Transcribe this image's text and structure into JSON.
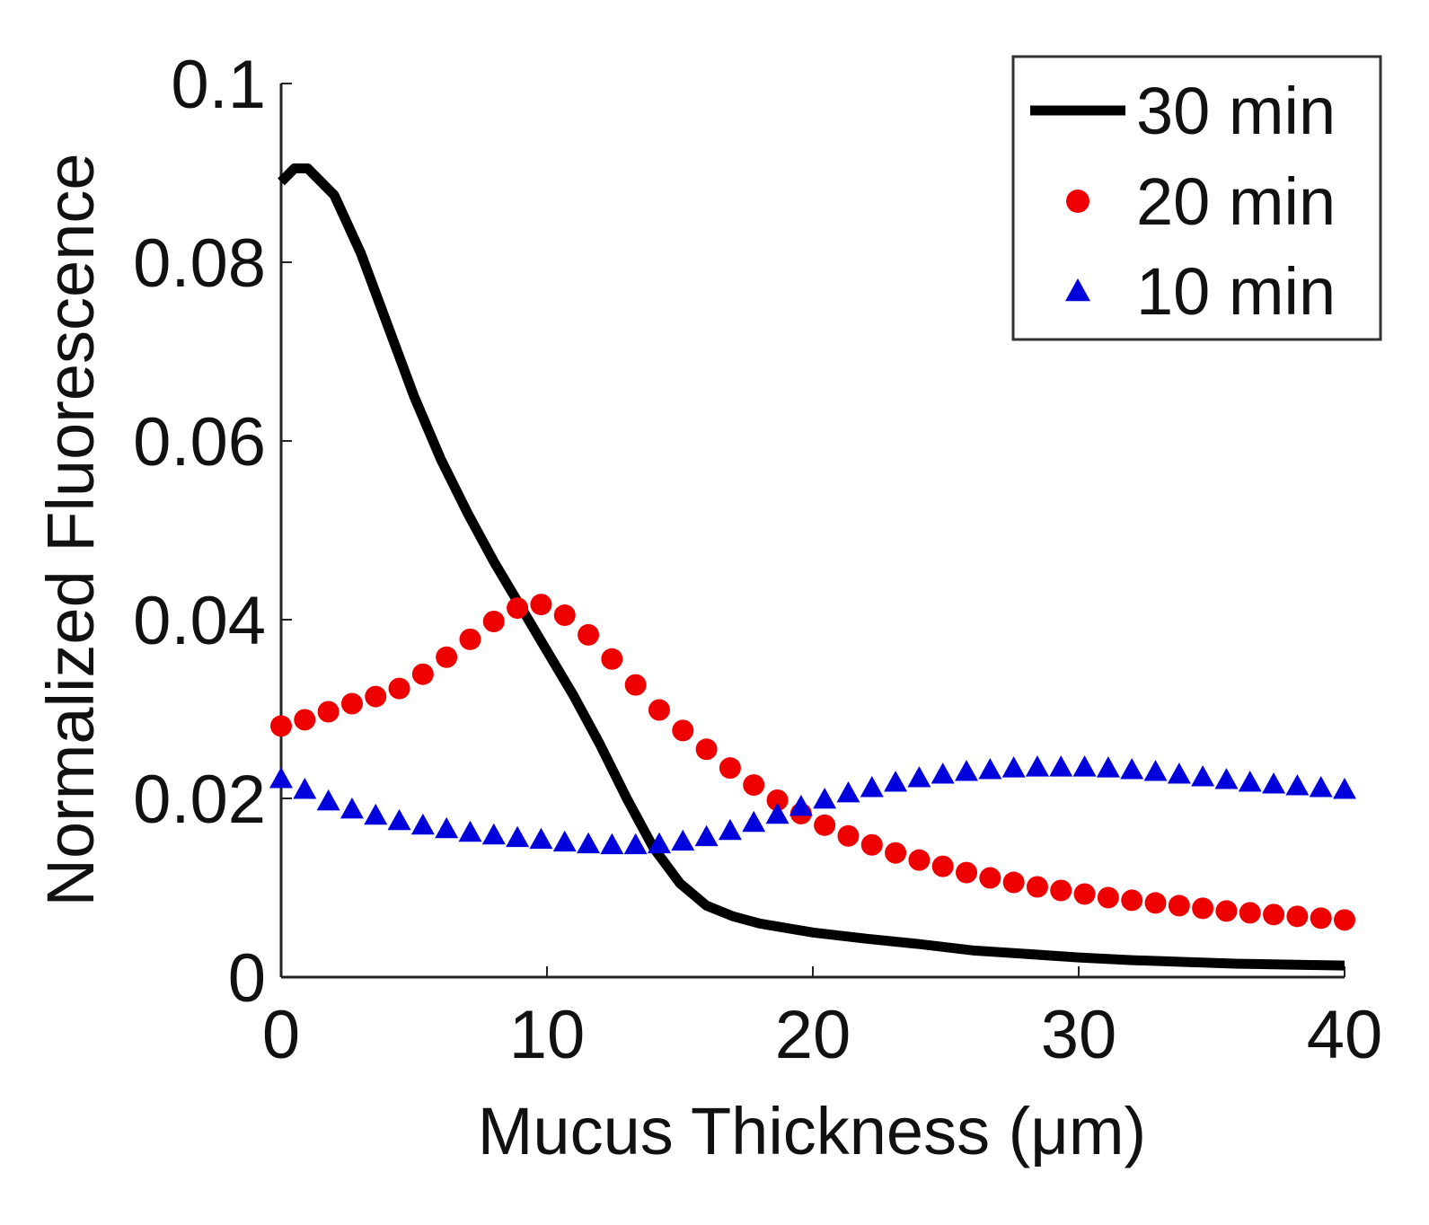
{
  "chart_data": {
    "type": "line",
    "title": "",
    "xlabel": "Mucus Thickness (μm)",
    "ylabel": "Normalized Fluorescence",
    "xlim": [
      0,
      40
    ],
    "ylim": [
      0,
      0.1
    ],
    "x_ticks": [
      0,
      10,
      20,
      30,
      40
    ],
    "x_tick_labels": [
      "0",
      "10",
      "20",
      "30",
      "40"
    ],
    "y_ticks": [
      0,
      0.02,
      0.04,
      0.06,
      0.08,
      0.1
    ],
    "y_tick_labels": [
      "0",
      "0.02",
      "0.04",
      "0.06",
      "0.08",
      "0.1"
    ],
    "grid": false,
    "legend_position": "top-right",
    "series": [
      {
        "name": "30 min",
        "style": "line",
        "color": "#000000",
        "x": [
          0,
          0.5,
          1,
          2,
          3,
          4,
          5,
          6,
          7,
          8,
          9,
          10,
          11,
          12,
          13,
          14,
          15,
          16,
          17,
          18,
          19,
          20,
          22,
          24,
          26,
          28,
          30,
          32,
          34,
          36,
          38,
          40
        ],
        "y": [
          0.089,
          0.0905,
          0.0905,
          0.0875,
          0.081,
          0.073,
          0.065,
          0.058,
          0.052,
          0.0465,
          0.0415,
          0.0365,
          0.0315,
          0.026,
          0.02,
          0.0145,
          0.0105,
          0.008,
          0.0068,
          0.006,
          0.0055,
          0.005,
          0.0043,
          0.0037,
          0.003,
          0.0026,
          0.0022,
          0.0019,
          0.0017,
          0.0015,
          0.0014,
          0.0013
        ]
      },
      {
        "name": "20 min",
        "style": "circle",
        "color": "#ee0000",
        "x": [
          0,
          0.889,
          1.778,
          2.667,
          3.556,
          4.444,
          5.333,
          6.222,
          7.111,
          8,
          8.889,
          9.778,
          10.667,
          11.556,
          12.444,
          13.333,
          14.222,
          15.111,
          16,
          16.889,
          17.778,
          18.667,
          19.556,
          20.444,
          21.333,
          22.222,
          23.111,
          24,
          24.889,
          25.778,
          26.667,
          27.556,
          28.444,
          29.333,
          30.222,
          31.111,
          32,
          32.889,
          33.778,
          34.667,
          35.556,
          36.444,
          37.333,
          38.222,
          39.111,
          40
        ],
        "y": [
          0.0281,
          0.0288,
          0.0297,
          0.0306,
          0.0314,
          0.0323,
          0.0339,
          0.0358,
          0.0378,
          0.0398,
          0.0413,
          0.0417,
          0.0405,
          0.0383,
          0.0356,
          0.0327,
          0.0299,
          0.0276,
          0.0255,
          0.0234,
          0.0215,
          0.0198,
          0.0183,
          0.017,
          0.0158,
          0.0148,
          0.0139,
          0.0131,
          0.0124,
          0.0117,
          0.0111,
          0.0106,
          0.0101,
          0.0097,
          0.0093,
          0.0089,
          0.0086,
          0.0083,
          0.008,
          0.0077,
          0.0074,
          0.0072,
          0.007,
          0.0068,
          0.0066,
          0.0064
        ]
      },
      {
        "name": "10 min",
        "style": "triangle",
        "color": "#0000dd",
        "x": [
          0,
          0.889,
          1.778,
          2.667,
          3.556,
          4.444,
          5.333,
          6.222,
          7.111,
          8,
          8.889,
          9.778,
          10.667,
          11.556,
          12.444,
          13.333,
          14.222,
          15.111,
          16,
          16.889,
          17.778,
          18.667,
          19.556,
          20.444,
          21.333,
          22.222,
          23.111,
          24,
          24.889,
          25.778,
          26.667,
          27.556,
          28.444,
          29.333,
          30.222,
          31.111,
          32,
          32.889,
          33.778,
          34.667,
          35.556,
          36.444,
          37.333,
          38.222,
          39.111,
          40
        ],
        "y": [
          0.0222,
          0.021,
          0.0197,
          0.0188,
          0.0181,
          0.0175,
          0.017,
          0.0166,
          0.0162,
          0.0159,
          0.0156,
          0.0154,
          0.0151,
          0.0149,
          0.0148,
          0.0148,
          0.0149,
          0.0152,
          0.0157,
          0.0164,
          0.0173,
          0.0182,
          0.0191,
          0.0199,
          0.0206,
          0.0212,
          0.0218,
          0.0223,
          0.0227,
          0.023,
          0.0232,
          0.0234,
          0.0235,
          0.0235,
          0.0235,
          0.0234,
          0.0232,
          0.023,
          0.0227,
          0.0224,
          0.0221,
          0.0218,
          0.0216,
          0.0214,
          0.0212,
          0.021
        ]
      }
    ]
  }
}
